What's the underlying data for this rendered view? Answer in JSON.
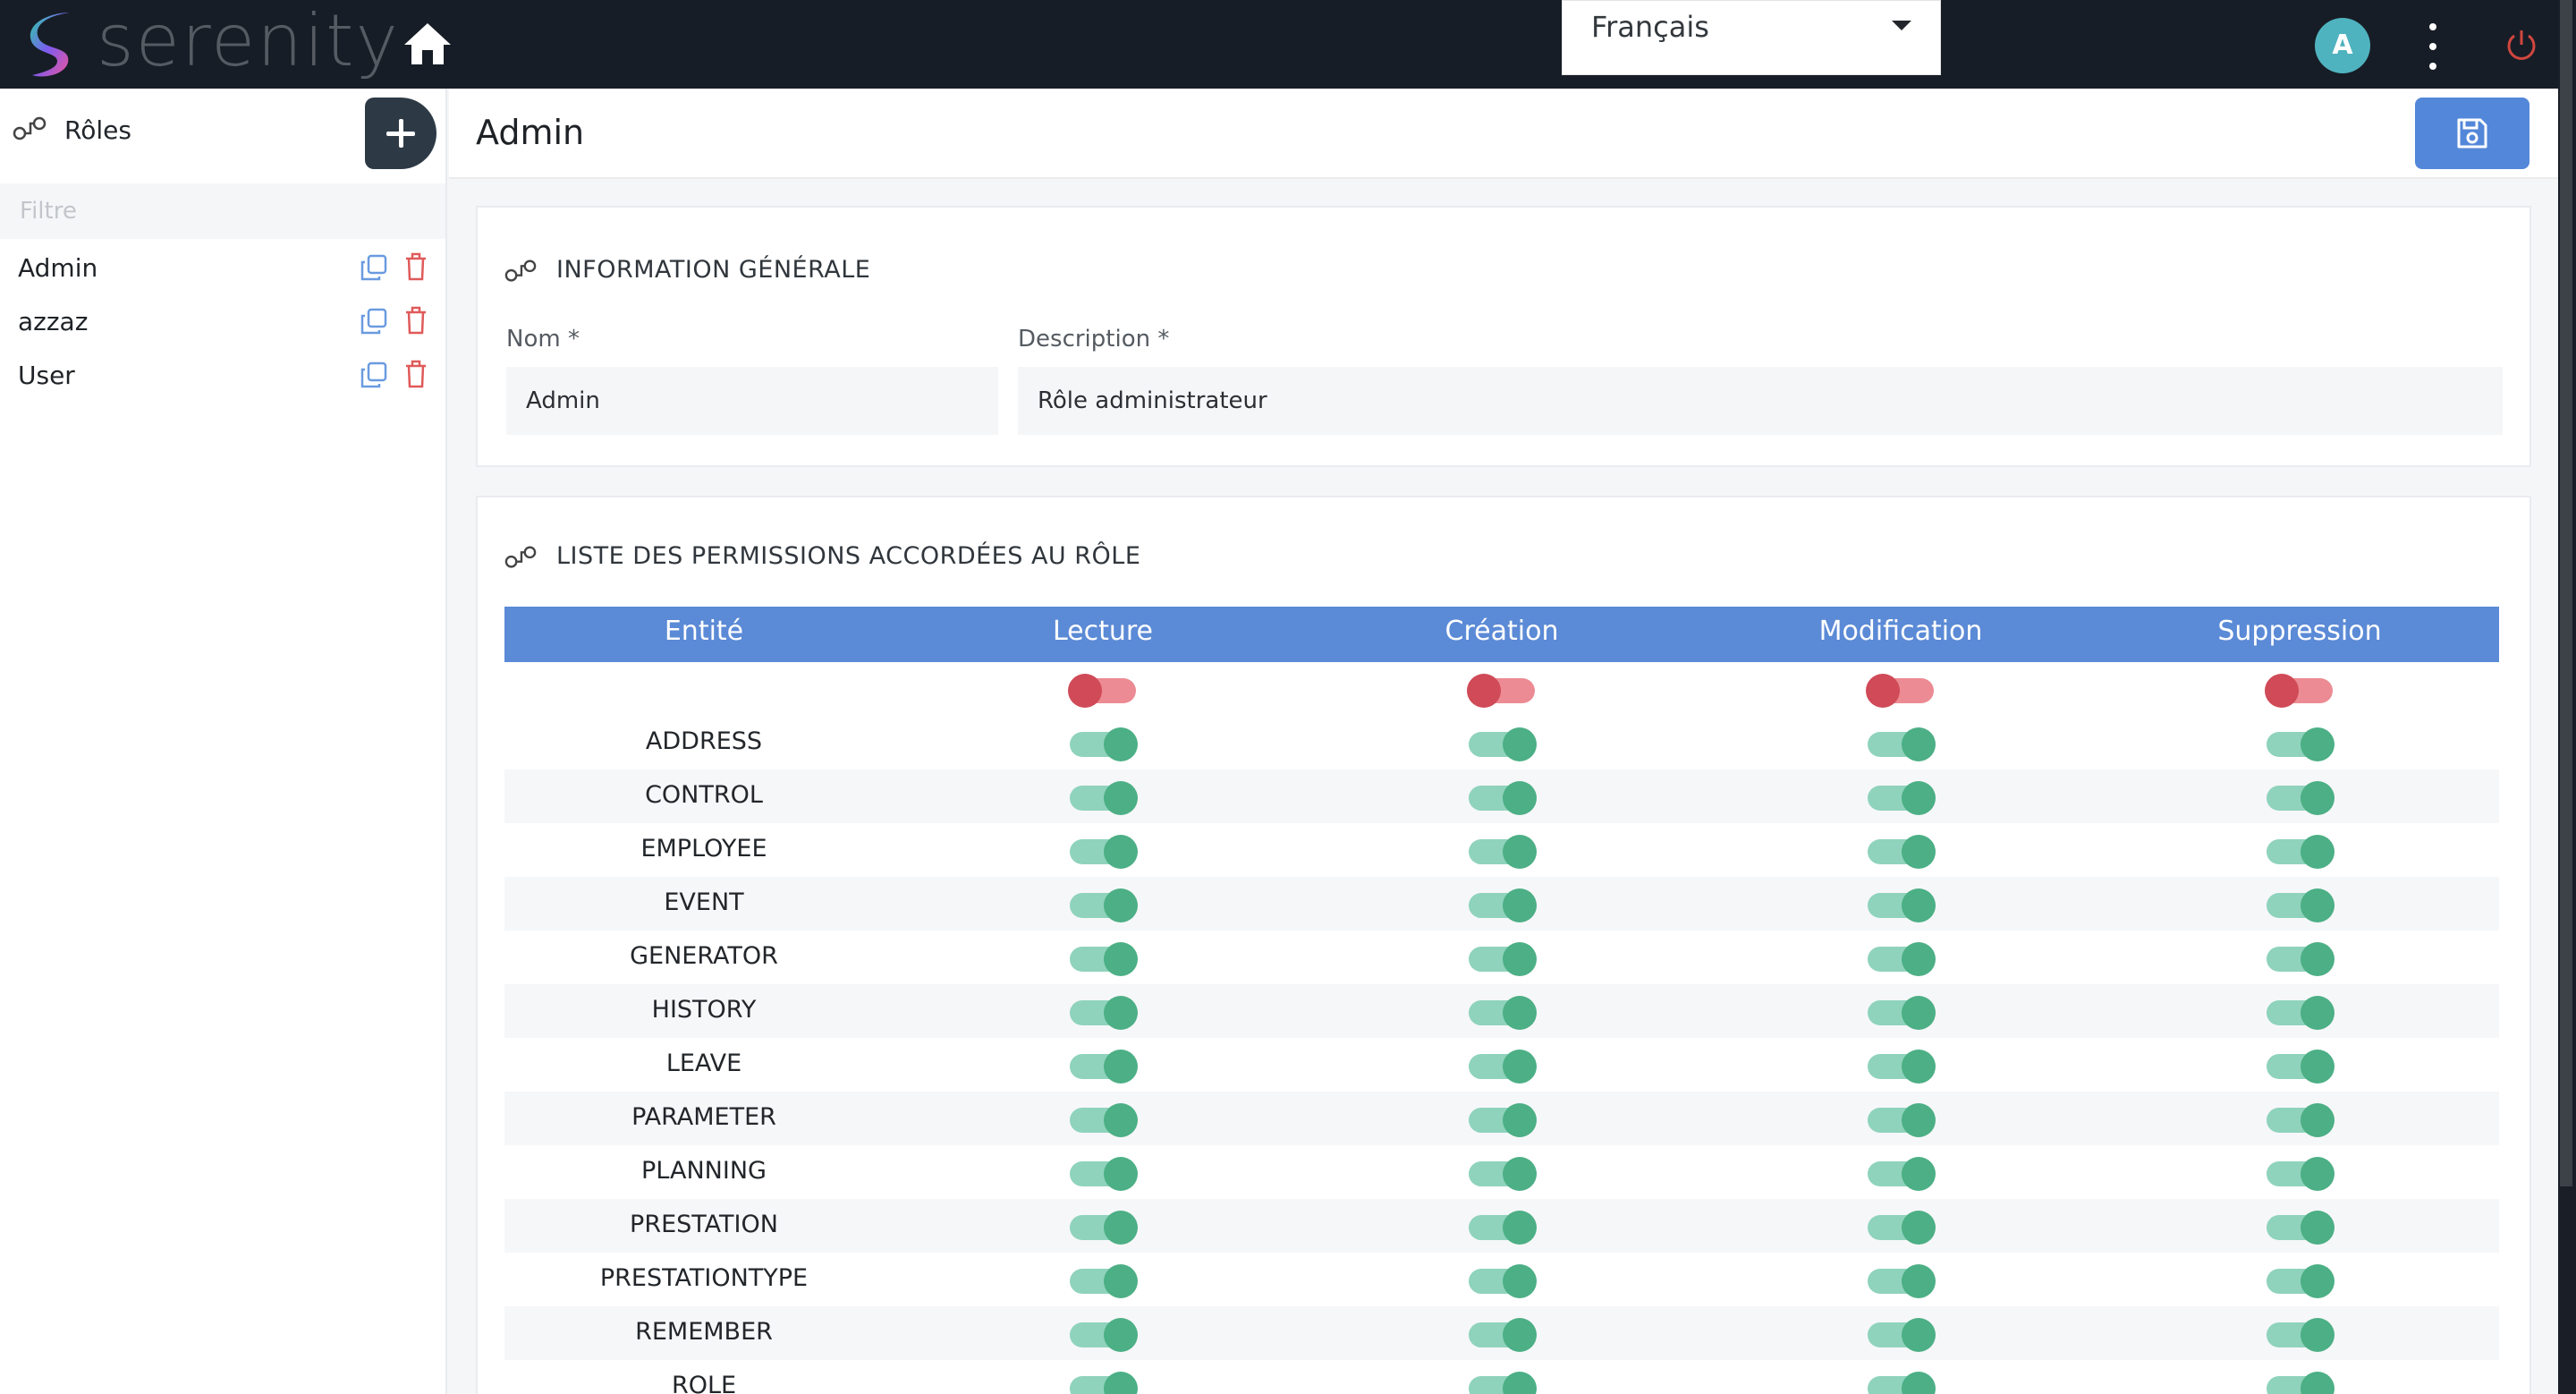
{
  "header": {
    "brand": "serenity",
    "language": "Français",
    "avatar_initial": "A"
  },
  "sidebar": {
    "title": "Rôles",
    "filter_placeholder": "Filtre",
    "roles": [
      {
        "name": "Admin"
      },
      {
        "name": "azzaz"
      },
      {
        "name": "User"
      }
    ]
  },
  "main": {
    "title": "Admin",
    "general": {
      "title": "INFORMATION GÉNÉRALE",
      "name_label": "Nom *",
      "name_value": "Admin",
      "description_label": "Description *",
      "description_value": "Rôle administrateur"
    },
    "permissions": {
      "title": "LISTE DES PERMISSIONS ACCORDÉES AU RÔLE",
      "columns": [
        "Entité",
        "Lecture",
        "Création",
        "Modification",
        "Suppression"
      ],
      "select_all": [
        false,
        false,
        false,
        false
      ],
      "rows": [
        {
          "entity": "ADDRESS",
          "perms": [
            true,
            true,
            true,
            true
          ]
        },
        {
          "entity": "CONTROL",
          "perms": [
            true,
            true,
            true,
            true
          ]
        },
        {
          "entity": "EMPLOYEE",
          "perms": [
            true,
            true,
            true,
            true
          ]
        },
        {
          "entity": "EVENT",
          "perms": [
            true,
            true,
            true,
            true
          ]
        },
        {
          "entity": "GENERATOR",
          "perms": [
            true,
            true,
            true,
            true
          ]
        },
        {
          "entity": "HISTORY",
          "perms": [
            true,
            true,
            true,
            true
          ]
        },
        {
          "entity": "LEAVE",
          "perms": [
            true,
            true,
            true,
            true
          ]
        },
        {
          "entity": "PARAMETER",
          "perms": [
            true,
            true,
            true,
            true
          ]
        },
        {
          "entity": "PLANNING",
          "perms": [
            true,
            true,
            true,
            true
          ]
        },
        {
          "entity": "PRESTATION",
          "perms": [
            true,
            true,
            true,
            true
          ]
        },
        {
          "entity": "PRESTATIONTYPE",
          "perms": [
            true,
            true,
            true,
            true
          ]
        },
        {
          "entity": "REMEMBER",
          "perms": [
            true,
            true,
            true,
            true
          ]
        },
        {
          "entity": "ROLE",
          "perms": [
            true,
            true,
            true,
            true
          ]
        }
      ]
    }
  },
  "colors": {
    "topbar": "#171d26",
    "primary": "#5387d9",
    "table_header": "#5b8ad6",
    "toggle_on": "#4caf85",
    "toggle_off": "#d04a57",
    "danger_icon": "#e05a5a",
    "copy_icon": "#6a9be0"
  },
  "icons": {
    "home": "home-icon",
    "power": "power-icon",
    "save": "save-icon",
    "copy": "copy-icon",
    "delete": "trash-icon",
    "roles": "roles-icon",
    "add": "plus-icon",
    "menu": "more-vertical-icon"
  }
}
